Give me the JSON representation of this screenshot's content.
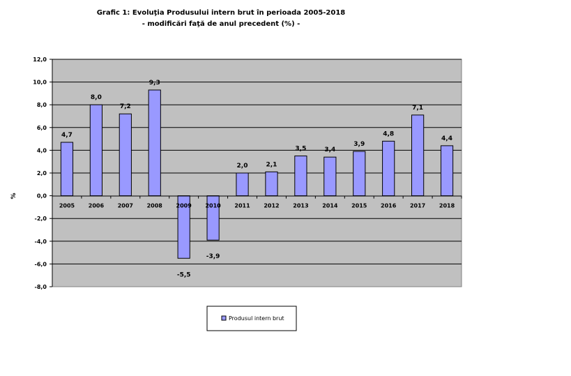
{
  "chart_data": {
    "type": "bar",
    "title": "Grafic 1: Evoluţia Produsului intern brut în perioada 2005-2018",
    "subtitle": "- modificări faţă de anul precedent (%) -",
    "ylabel": "%",
    "xlabel": "",
    "categories": [
      "2005",
      "2006",
      "2007",
      "2008",
      "2009",
      "2010",
      "2011",
      "2012",
      "2013",
      "2014",
      "2015",
      "2016",
      "2017",
      "2018"
    ],
    "series": [
      {
        "name": "Produsul intern brut",
        "values": [
          4.7,
          8.0,
          7.2,
          9.3,
          -5.5,
          -3.9,
          2.0,
          2.1,
          3.5,
          3.4,
          3.9,
          4.8,
          7.1,
          4.4
        ],
        "labels": [
          "4,7",
          "8,0",
          "7,2",
          "9,3",
          "-5,5",
          "-3,9",
          "2,0",
          "2,1",
          "3,5",
          "3,4",
          "3,9",
          "4,8",
          "7,1",
          "4,4"
        ],
        "color": "#9999ff"
      }
    ],
    "ylim": [
      -8,
      12
    ],
    "yticks": [
      12,
      10,
      8,
      6,
      4,
      2,
      0,
      -2,
      -4,
      -6,
      -8
    ],
    "ytick_labels": [
      "12,0",
      "10,0",
      "8,0",
      "6,0",
      "4,0",
      "2,0",
      "0,0",
      "-2,0",
      "-4,0",
      "-6,0",
      "-8,0"
    ],
    "grid": true,
    "legend_position": "bottom",
    "plot_background": "#c0c0c0",
    "bar_edge_color": "#000000"
  }
}
